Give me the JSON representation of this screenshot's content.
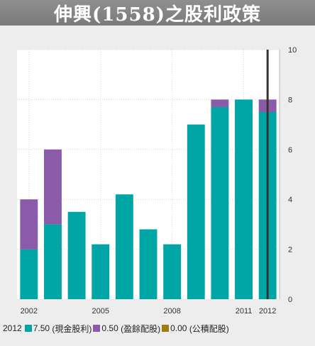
{
  "title": "伸興(1558)之股利政策",
  "chart_data": {
    "type": "bar",
    "stacked": true,
    "categories": [
      "2002",
      "2003",
      "2004",
      "2005",
      "2006",
      "2007",
      "2008",
      "2009",
      "2010",
      "2011",
      "2012"
    ],
    "x_tick_labels": [
      "2002",
      "2005",
      "2008",
      "2011",
      "2012"
    ],
    "series": [
      {
        "name": "現金股利",
        "color": "#00a6a6",
        "values": [
          2,
          3,
          3.5,
          2.2,
          4.2,
          2.8,
          2.2,
          7,
          7.7,
          8,
          7.5
        ]
      },
      {
        "name": "盈餘配股",
        "color": "#8b5aa8",
        "values": [
          2,
          3,
          0,
          0,
          0,
          0,
          0,
          0,
          0.3,
          0,
          0.5
        ]
      },
      {
        "name": "公積配股",
        "color": "#a07c10",
        "values": [
          0,
          0,
          0,
          0,
          0,
          0,
          0,
          0,
          0,
          0,
          0
        ]
      }
    ],
    "ylim": [
      0,
      10
    ],
    "y_ticks": [
      0,
      2,
      4,
      6,
      8,
      10
    ],
    "y_axis_side": "right",
    "grid": true,
    "highlight_category": "2012",
    "legend": {
      "placement": "bottom-left",
      "year": "2012",
      "items": [
        {
          "value": "7.50",
          "name": "(現金股利)",
          "color": "#00a6a6"
        },
        {
          "value": "0.50",
          "name": "(盈餘配股)",
          "color": "#8b5aa8"
        },
        {
          "value": "0.00",
          "name": "(公積配股)",
          "color": "#a07c10"
        }
      ]
    }
  }
}
